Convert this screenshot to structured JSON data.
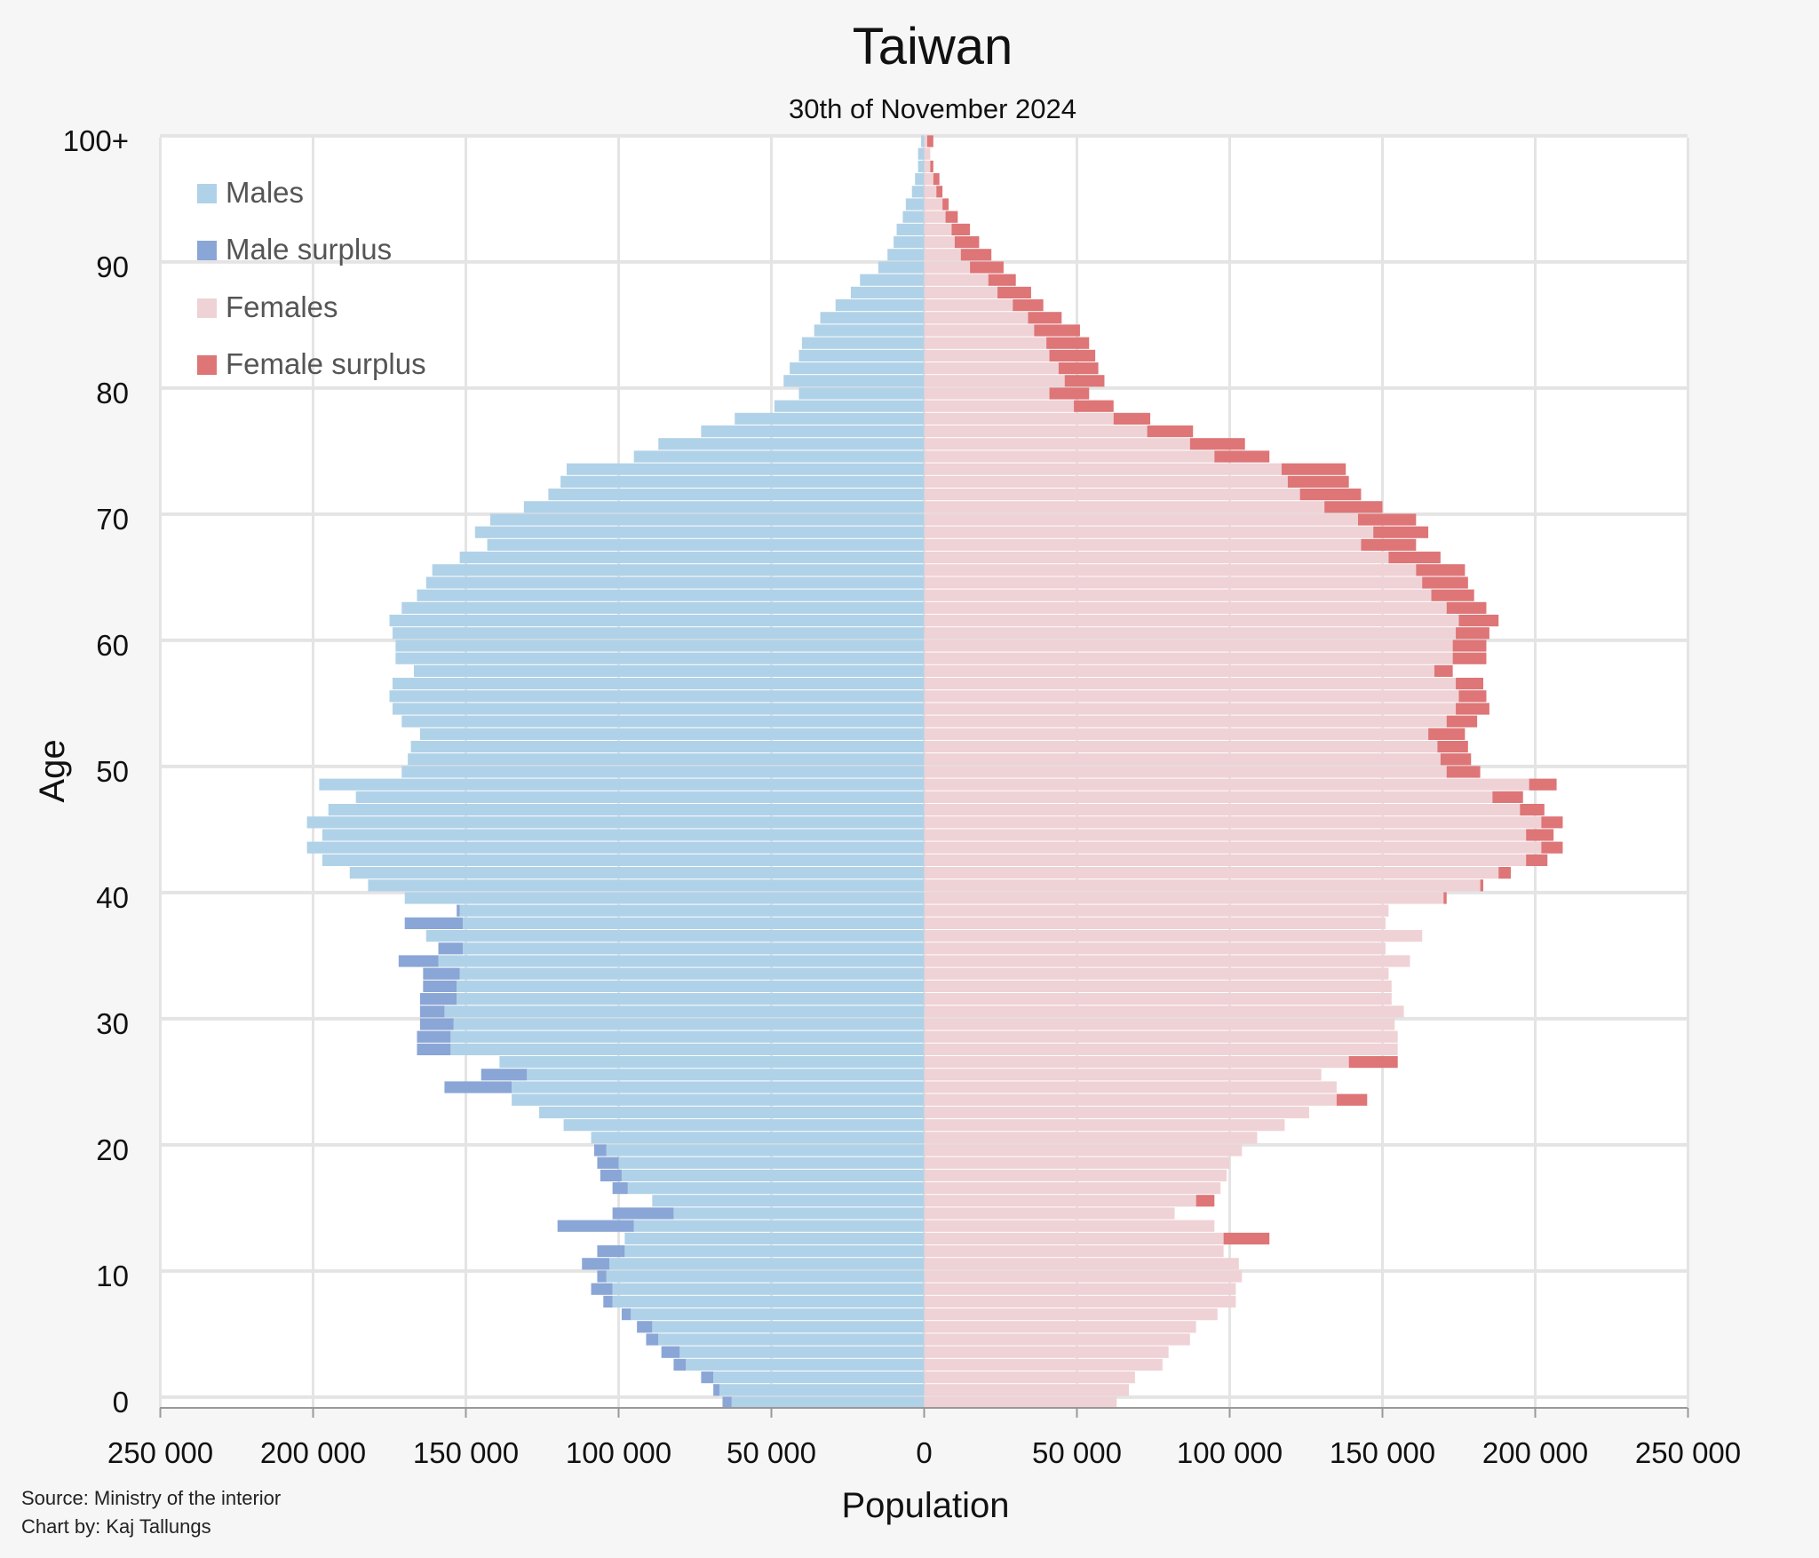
{
  "chart_data": {
    "type": "bar",
    "title": "Taiwan",
    "subtitle": "30th of November 2024",
    "xlabel": "Population",
    "ylabel": "Age",
    "xlim": [
      -250000,
      250000
    ],
    "x_ticks": [
      -250000,
      -200000,
      -150000,
      -100000,
      -50000,
      0,
      50000,
      100000,
      150000,
      200000,
      250000
    ],
    "x_tick_labels": [
      "250 000",
      "200 000",
      "150 000",
      "100 000",
      "50 000",
      "0",
      "50 000",
      "100 000",
      "150 000",
      "200 000",
      "250 000"
    ],
    "y_ticks": [
      0,
      10,
      20,
      30,
      40,
      50,
      60,
      70,
      80,
      90,
      100
    ],
    "y_tick_labels": [
      "0",
      "10",
      "20",
      "30",
      "40",
      "50",
      "60",
      "70",
      "80",
      "90",
      "100+"
    ],
    "grid": true,
    "legend_position": "top-left",
    "legend": [
      "Males",
      "Male surplus",
      "Females",
      "Female surplus"
    ],
    "colors": {
      "males": "#b0d2e8",
      "male_surplus": "#8aa6d6",
      "females": "#efd2d5",
      "female_surplus": "#de7577",
      "grid": "#e4e4e4",
      "axis": "#999999"
    },
    "ages": [
      0,
      1,
      2,
      3,
      4,
      5,
      6,
      7,
      8,
      9,
      10,
      11,
      12,
      13,
      14,
      15,
      16,
      17,
      18,
      19,
      20,
      21,
      22,
      23,
      24,
      25,
      26,
      27,
      28,
      29,
      30,
      31,
      32,
      33,
      34,
      35,
      36,
      37,
      38,
      39,
      40,
      41,
      42,
      43,
      44,
      45,
      46,
      47,
      48,
      49,
      50,
      51,
      52,
      53,
      54,
      55,
      56,
      57,
      58,
      59,
      60,
      61,
      62,
      63,
      64,
      65,
      66,
      67,
      68,
      69,
      70,
      71,
      72,
      73,
      74,
      75,
      76,
      77,
      78,
      79,
      80,
      81,
      82,
      83,
      84,
      85,
      86,
      87,
      88,
      89,
      90,
      91,
      92,
      93,
      94,
      95,
      96,
      97,
      98,
      99,
      100
    ],
    "series": [
      {
        "name": "Males",
        "values": [
          66000,
          69000,
          73000,
          82000,
          86000,
          91000,
          94000,
          99000,
          105000,
          109000,
          107000,
          112000,
          107000,
          98000,
          120000,
          102000,
          89000,
          102000,
          106000,
          107000,
          108000,
          109000,
          118000,
          126000,
          135000,
          157000,
          145000,
          139000,
          166000,
          166000,
          165000,
          165000,
          165000,
          164000,
          164000,
          172000,
          159000,
          163000,
          170000,
          153000,
          170000,
          182000,
          188000,
          197000,
          202000,
          197000,
          202000,
          195000,
          186000,
          198000,
          171000,
          169000,
          168000,
          165000,
          171000,
          174000,
          175000,
          174000,
          167000,
          173000,
          173000,
          174000,
          175000,
          171000,
          166000,
          163000,
          161000,
          152000,
          143000,
          147000,
          142000,
          131000,
          123000,
          119000,
          117000,
          95000,
          87000,
          73000,
          62000,
          49000,
          41000,
          46000,
          44000,
          41000,
          40000,
          36000,
          34000,
          29000,
          24000,
          21000,
          15000,
          12000,
          10000,
          9000,
          7000,
          6000,
          4000,
          3000,
          2000,
          2000,
          1000
        ]
      },
      {
        "name": "Females",
        "values": [
          63000,
          67000,
          69000,
          78000,
          80000,
          87000,
          89000,
          96000,
          102000,
          102000,
          104000,
          103000,
          98000,
          113000,
          95000,
          82000,
          95000,
          97000,
          99000,
          100000,
          104000,
          109000,
          118000,
          126000,
          145000,
          135000,
          130000,
          155000,
          155000,
          155000,
          154000,
          157000,
          153000,
          153000,
          152000,
          159000,
          151000,
          163000,
          151000,
          152000,
          171000,
          183000,
          192000,
          204000,
          209000,
          206000,
          209000,
          203000,
          196000,
          207000,
          182000,
          179000,
          178000,
          177000,
          181000,
          185000,
          184000,
          183000,
          173000,
          184000,
          184000,
          185000,
          188000,
          184000,
          180000,
          178000,
          177000,
          169000,
          161000,
          165000,
          161000,
          150000,
          143000,
          139000,
          138000,
          113000,
          105000,
          88000,
          74000,
          62000,
          54000,
          59000,
          57000,
          56000,
          54000,
          51000,
          45000,
          39000,
          35000,
          30000,
          26000,
          22000,
          18000,
          15000,
          11000,
          8000,
          6000,
          5000,
          3000,
          2000,
          3000
        ]
      }
    ]
  }
}
